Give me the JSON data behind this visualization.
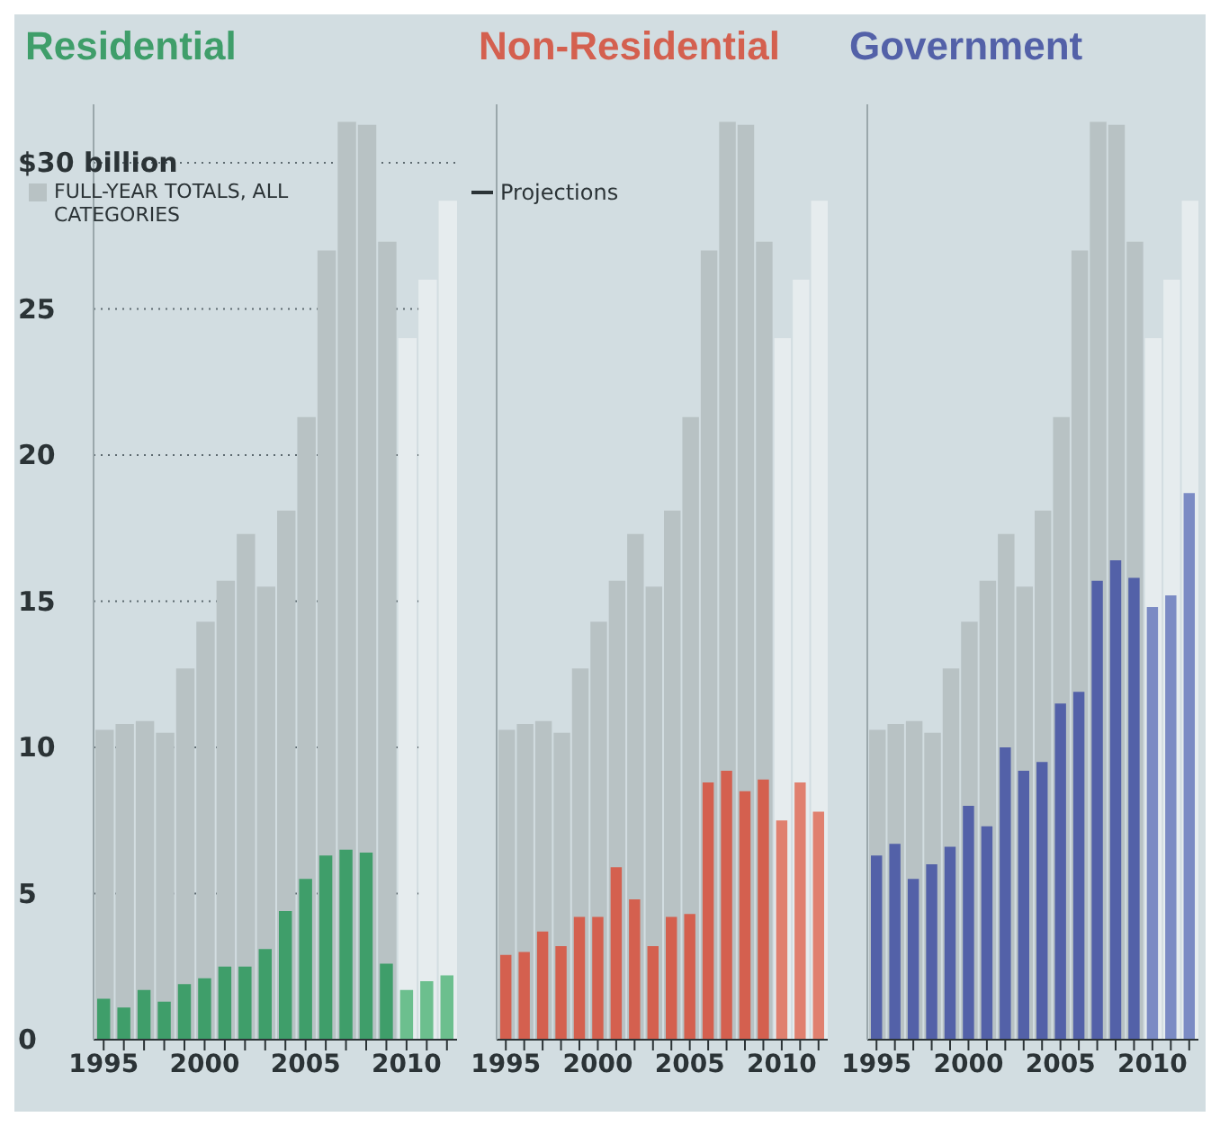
{
  "chart_data": [
    {
      "type": "bar",
      "title": "Residential",
      "categories": [
        "1995",
        null,
        null,
        null,
        null,
        "2000",
        null,
        null,
        null,
        null,
        "2005",
        null,
        null,
        null,
        null,
        "2010",
        null,
        null
      ],
      "ylim": [
        0,
        32
      ],
      "yticks": [
        0,
        5,
        10,
        15,
        20,
        25,
        {
          "value": 30,
          "label": "$30 billion"
        }
      ],
      "grid": "y",
      "legend": "top left",
      "series": [
        {
          "name": "FULL-YEAR TOTALS, ALL CATEGORIES",
          "color": "#b8c2c4",
          "colors": [
            "#b8c2c4",
            "#b8c2c4",
            "#b8c2c4",
            "#b8c2c4",
            "#b8c2c4",
            "#b8c2c4",
            "#b8c2c4",
            "#b8c2c4",
            "#b8c2c4",
            "#b8c2c4",
            "#b8c2c4",
            "#b8c2c4",
            "#b8c2c4",
            "#b8c2c4",
            "#b8c2c4",
            "#e6ecee",
            "#e6ecee",
            "#e6ecee"
          ],
          "values": [
            10.6,
            10.8,
            10.9,
            10.5,
            12.7,
            14.3,
            15.7,
            17.3,
            15.5,
            18.1,
            21.3,
            27.0,
            31.4,
            31.3,
            27.3,
            24.0,
            26.0,
            28.7
          ]
        },
        {
          "color": "#3f9e6a",
          "colors": [
            "#3f9e6a",
            "#3f9e6a",
            "#3f9e6a",
            "#3f9e6a",
            "#3f9e6a",
            "#3f9e6a",
            "#3f9e6a",
            "#3f9e6a",
            "#3f9e6a",
            "#3f9e6a",
            "#3f9e6a",
            "#3f9e6a",
            "#3f9e6a",
            "#3f9e6a",
            "#3f9e6a",
            "#6cbf8e",
            "#6cbf8e",
            "#6cbf8e"
          ],
          "values": [
            1.4,
            1.1,
            1.7,
            1.3,
            1.9,
            2.1,
            2.5,
            2.5,
            3.1,
            4.4,
            5.5,
            6.3,
            6.5,
            6.4,
            2.6,
            1.7,
            2.0,
            2.2
          ]
        }
      ]
    },
    {
      "type": "bar",
      "title": "Non-Residential",
      "categories": [
        "1995",
        null,
        null,
        null,
        null,
        "2000",
        null,
        null,
        null,
        null,
        "2005",
        null,
        null,
        null,
        null,
        "2010",
        null,
        null
      ],
      "ylim": [
        0,
        32
      ],
      "yticks": [
        0,
        5,
        10,
        15,
        20,
        25,
        30
      ],
      "grid": "y",
      "tick_labels": "x",
      "annotations": [
        "Projections"
      ],
      "series": [
        {
          "color": "#b8c2c4",
          "colors": [
            "#b8c2c4",
            "#b8c2c4",
            "#b8c2c4",
            "#b8c2c4",
            "#b8c2c4",
            "#b8c2c4",
            "#b8c2c4",
            "#b8c2c4",
            "#b8c2c4",
            "#b8c2c4",
            "#b8c2c4",
            "#b8c2c4",
            "#b8c2c4",
            "#b8c2c4",
            "#b8c2c4",
            "#e6ecee",
            "#e6ecee",
            "#e6ecee"
          ],
          "values": [
            10.6,
            10.8,
            10.9,
            10.5,
            12.7,
            14.3,
            15.7,
            17.3,
            15.5,
            18.1,
            21.3,
            27.0,
            31.4,
            31.3,
            27.3,
            24.0,
            26.0,
            28.7
          ]
        },
        {
          "color": "#d4604f",
          "colors": [
            "#d4604f",
            "#d4604f",
            "#d4604f",
            "#d4604f",
            "#d4604f",
            "#d4604f",
            "#d4604f",
            "#d4604f",
            "#d4604f",
            "#d4604f",
            "#d4604f",
            "#d4604f",
            "#d4604f",
            "#d4604f",
            "#d4604f",
            "#e0806f",
            "#e0806f",
            "#e0806f"
          ],
          "values": [
            2.9,
            3.0,
            3.7,
            3.2,
            4.2,
            4.2,
            5.9,
            4.8,
            3.2,
            4.2,
            4.3,
            8.8,
            9.2,
            8.5,
            8.9,
            7.5,
            8.8,
            7.8
          ]
        }
      ]
    },
    {
      "type": "bar",
      "title": "Government",
      "categories": [
        "1995",
        null,
        null,
        null,
        null,
        "2000",
        null,
        null,
        null,
        null,
        "2005",
        null,
        null,
        null,
        null,
        "2010",
        null,
        null
      ],
      "ylim": [
        0,
        32
      ],
      "yticks": [
        0,
        5,
        10,
        15,
        20,
        25,
        30
      ],
      "grid": "y",
      "tick_labels": "x",
      "series": [
        {
          "color": "#b8c2c4",
          "colors": [
            "#b8c2c4",
            "#b8c2c4",
            "#b8c2c4",
            "#b8c2c4",
            "#b8c2c4",
            "#b8c2c4",
            "#b8c2c4",
            "#b8c2c4",
            "#b8c2c4",
            "#b8c2c4",
            "#b8c2c4",
            "#b8c2c4",
            "#b8c2c4",
            "#b8c2c4",
            "#b8c2c4",
            "#e6ecee",
            "#e6ecee",
            "#e6ecee"
          ],
          "values": [
            10.6,
            10.8,
            10.9,
            10.5,
            12.7,
            14.3,
            15.7,
            17.3,
            15.5,
            18.1,
            21.3,
            27.0,
            31.4,
            31.3,
            27.3,
            24.0,
            26.0,
            28.7
          ]
        },
        {
          "color": "#5361a8",
          "colors": [
            "#5361a8",
            "#5361a8",
            "#5361a8",
            "#5361a8",
            "#5361a8",
            "#5361a8",
            "#5361a8",
            "#5361a8",
            "#5361a8",
            "#5361a8",
            "#5361a8",
            "#5361a8",
            "#5361a8",
            "#5361a8",
            "#5361a8",
            "#7b8bc4",
            "#7b8bc4",
            "#7b8bc4"
          ],
          "values": [
            6.3,
            6.7,
            5.5,
            6.0,
            6.6,
            8.0,
            7.3,
            10.0,
            9.2,
            9.5,
            11.5,
            11.9,
            15.7,
            16.4,
            15.8,
            14.8,
            15.2,
            18.7
          ]
        }
      ]
    }
  ]
}
